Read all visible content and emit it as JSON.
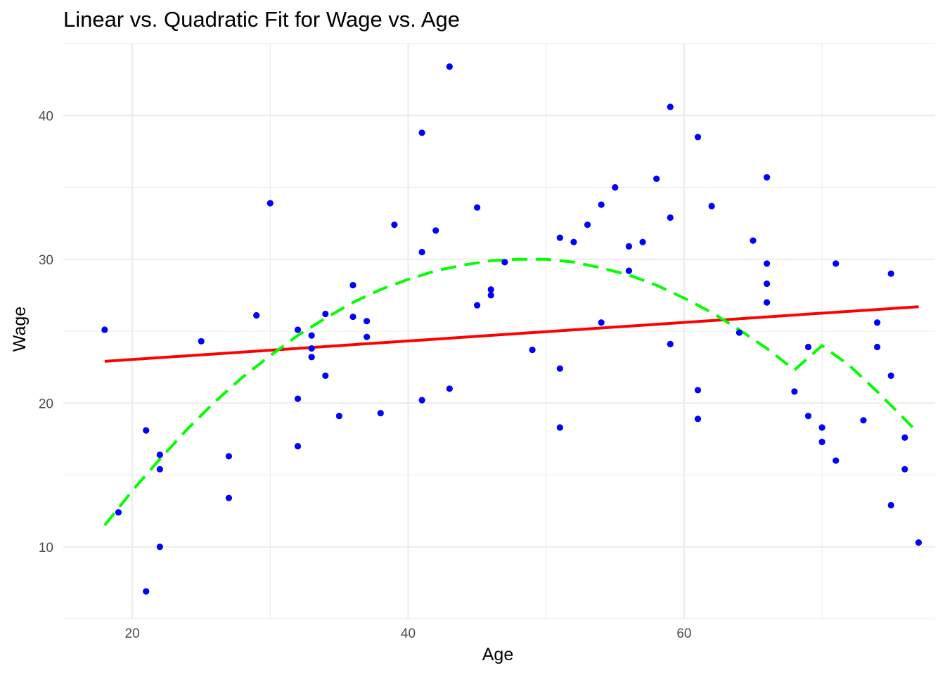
{
  "chart_data": {
    "type": "scatter",
    "title": "Linear vs. Quadratic Fit for Wage vs. Age",
    "xlabel": "Age",
    "ylabel": "Wage",
    "xlim": [
      15,
      78.2
    ],
    "ylim": [
      5,
      45
    ],
    "x_ticks": [
      20,
      40,
      60
    ],
    "y_ticks": [
      10,
      20,
      30,
      40
    ],
    "grid": true,
    "legend": "none",
    "colors": {
      "points": "#0000ff",
      "linear": "#ff0000",
      "quadratic": "#00ff00",
      "grid": "#ebebeb"
    },
    "series": [
      {
        "type": "scatter",
        "color": "#0000ff",
        "points": [
          {
            "x": 18,
            "y": 25.1
          },
          {
            "x": 19,
            "y": 12.4
          },
          {
            "x": 21,
            "y": 18.1
          },
          {
            "x": 21,
            "y": 6.9
          },
          {
            "x": 22,
            "y": 16.4
          },
          {
            "x": 22,
            "y": 15.4
          },
          {
            "x": 22,
            "y": 10.0
          },
          {
            "x": 25,
            "y": 24.3
          },
          {
            "x": 27,
            "y": 16.3
          },
          {
            "x": 27,
            "y": 13.4
          },
          {
            "x": 29,
            "y": 26.1
          },
          {
            "x": 30,
            "y": 33.9
          },
          {
            "x": 32,
            "y": 25.1
          },
          {
            "x": 32,
            "y": 20.3
          },
          {
            "x": 32,
            "y": 17.0
          },
          {
            "x": 33,
            "y": 24.7
          },
          {
            "x": 33,
            "y": 23.8
          },
          {
            "x": 33,
            "y": 23.2
          },
          {
            "x": 34,
            "y": 26.2
          },
          {
            "x": 34,
            "y": 21.9
          },
          {
            "x": 35,
            "y": 19.1
          },
          {
            "x": 36,
            "y": 28.2
          },
          {
            "x": 36,
            "y": 26.0
          },
          {
            "x": 37,
            "y": 25.7
          },
          {
            "x": 37,
            "y": 24.6
          },
          {
            "x": 38,
            "y": 19.3
          },
          {
            "x": 39,
            "y": 32.4
          },
          {
            "x": 41,
            "y": 38.8
          },
          {
            "x": 41,
            "y": 30.5
          },
          {
            "x": 41,
            "y": 20.2
          },
          {
            "x": 42,
            "y": 32.0
          },
          {
            "x": 43,
            "y": 43.4
          },
          {
            "x": 43,
            "y": 21.0
          },
          {
            "x": 45,
            "y": 33.6
          },
          {
            "x": 45,
            "y": 26.8
          },
          {
            "x": 46,
            "y": 27.9
          },
          {
            "x": 46,
            "y": 27.5
          },
          {
            "x": 47,
            "y": 29.8
          },
          {
            "x": 49,
            "y": 23.7
          },
          {
            "x": 51,
            "y": 31.5
          },
          {
            "x": 51,
            "y": 22.4
          },
          {
            "x": 51,
            "y": 18.3
          },
          {
            "x": 52,
            "y": 31.2
          },
          {
            "x": 53,
            "y": 32.4
          },
          {
            "x": 54,
            "y": 33.8
          },
          {
            "x": 54,
            "y": 25.6
          },
          {
            "x": 55,
            "y": 35.0
          },
          {
            "x": 56,
            "y": 30.9
          },
          {
            "x": 56,
            "y": 29.2
          },
          {
            "x": 57,
            "y": 31.2
          },
          {
            "x": 58,
            "y": 35.6
          },
          {
            "x": 59,
            "y": 40.6
          },
          {
            "x": 59,
            "y": 32.9
          },
          {
            "x": 59,
            "y": 24.1
          },
          {
            "x": 61,
            "y": 38.5
          },
          {
            "x": 61,
            "y": 20.9
          },
          {
            "x": 61,
            "y": 18.9
          },
          {
            "x": 62,
            "y": 33.7
          },
          {
            "x": 64,
            "y": 24.9
          },
          {
            "x": 65,
            "y": 31.3
          },
          {
            "x": 66,
            "y": 35.7
          },
          {
            "x": 66,
            "y": 29.7
          },
          {
            "x": 66,
            "y": 28.3
          },
          {
            "x": 66,
            "y": 27.0
          },
          {
            "x": 68,
            "y": 20.8
          },
          {
            "x": 69,
            "y": 23.9
          },
          {
            "x": 69,
            "y": 19.1
          },
          {
            "x": 70,
            "y": 18.3
          },
          {
            "x": 70,
            "y": 17.3
          },
          {
            "x": 71,
            "y": 29.7
          },
          {
            "x": 71,
            "y": 16.0
          },
          {
            "x": 73,
            "y": 18.8
          },
          {
            "x": 74,
            "y": 25.6
          },
          {
            "x": 74,
            "y": 23.9
          },
          {
            "x": 75,
            "y": 29.0
          },
          {
            "x": 75,
            "y": 21.9
          },
          {
            "x": 75,
            "y": 12.9
          },
          {
            "x": 76,
            "y": 17.6
          },
          {
            "x": 76,
            "y": 15.4
          },
          {
            "x": 77,
            "y": 10.3
          }
        ]
      },
      {
        "type": "line",
        "style": "solid",
        "color": "#ff0000",
        "points": [
          {
            "x": 18,
            "y": 22.9
          },
          {
            "x": 77,
            "y": 26.7
          }
        ]
      },
      {
        "type": "line",
        "style": "dashed",
        "color": "#00ff00",
        "points": [
          {
            "x": 18,
            "y": 11.5
          },
          {
            "x": 20,
            "y": 13.9
          },
          {
            "x": 22,
            "y": 16.1
          },
          {
            "x": 24,
            "y": 18.2
          },
          {
            "x": 26,
            "y": 20.1
          },
          {
            "x": 28,
            "y": 21.8
          },
          {
            "x": 30,
            "y": 23.3
          },
          {
            "x": 32,
            "y": 24.7
          },
          {
            "x": 34,
            "y": 25.9
          },
          {
            "x": 36,
            "y": 27.0
          },
          {
            "x": 38,
            "y": 27.9
          },
          {
            "x": 40,
            "y": 28.6
          },
          {
            "x": 42,
            "y": 29.2
          },
          {
            "x": 44,
            "y": 29.6
          },
          {
            "x": 46,
            "y": 29.9
          },
          {
            "x": 48,
            "y": 30.0
          },
          {
            "x": 50,
            "y": 30.0
          },
          {
            "x": 52,
            "y": 29.8
          },
          {
            "x": 54,
            "y": 29.4
          },
          {
            "x": 56,
            "y": 28.9
          },
          {
            "x": 58,
            "y": 28.2
          },
          {
            "x": 60,
            "y": 27.3
          },
          {
            "x": 62,
            "y": 26.3
          },
          {
            "x": 64,
            "y": 25.1
          },
          {
            "x": 66,
            "y": 23.8
          },
          {
            "x": 68,
            "y": 22.3
          },
          {
            "x": 70,
            "y": 24.0
          },
          {
            "x": 72,
            "y": 22.6
          },
          {
            "x": 74,
            "y": 20.8
          },
          {
            "x": 77,
            "y": 17.9
          }
        ]
      }
    ]
  }
}
